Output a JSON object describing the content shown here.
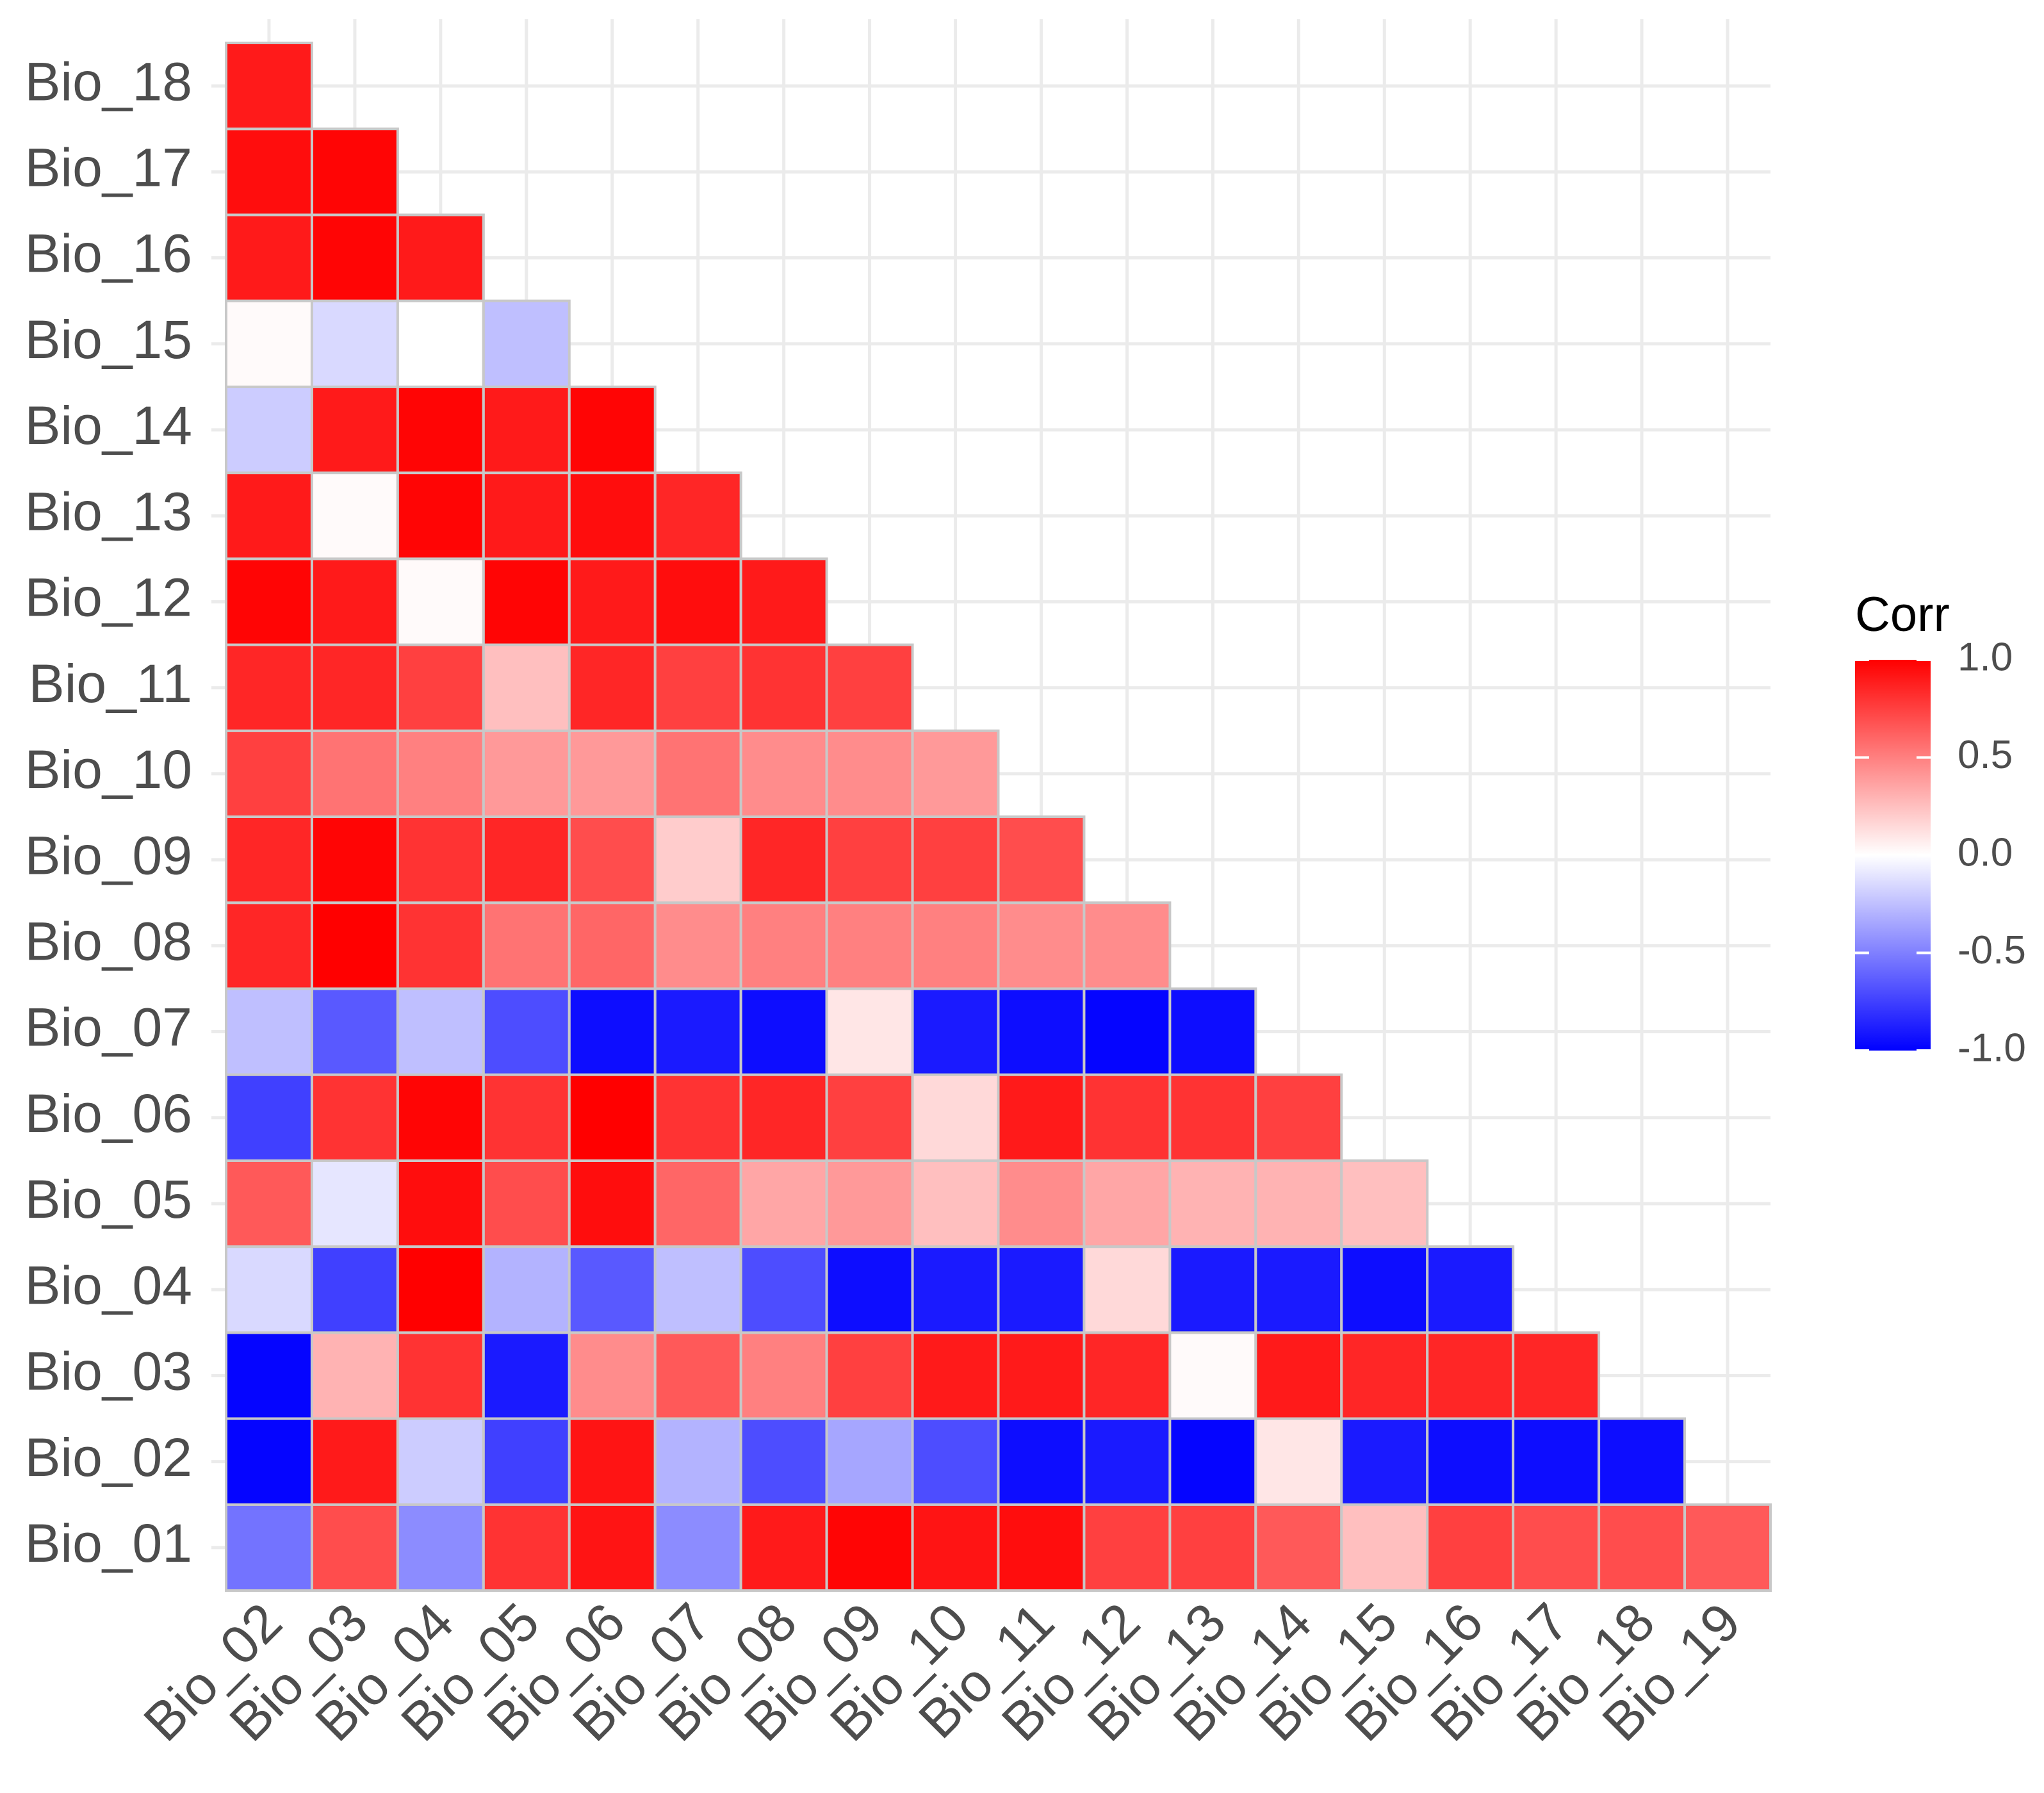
{
  "chart_data": {
    "type": "heatmap",
    "title": "",
    "xlabel": "",
    "ylabel": "",
    "x_categories": [
      "Bio_02",
      "Bio_03",
      "Bio_04",
      "Bio_05",
      "Bio_06",
      "Bio_07",
      "Bio_08",
      "Bio_09",
      "Bio_10",
      "Bio_11",
      "Bio_12",
      "Bio_13",
      "Bio_14",
      "Bio_15",
      "Bio_16",
      "Bio_17",
      "Bio_18",
      "Bio_19"
    ],
    "y_categories": [
      "Bio_01",
      "Bio_02",
      "Bio_03",
      "Bio_04",
      "Bio_05",
      "Bio_06",
      "Bio_07",
      "Bio_08",
      "Bio_09",
      "Bio_10",
      "Bio_11",
      "Bio_12",
      "Bio_13",
      "Bio_14",
      "Bio_15",
      "Bio_16",
      "Bio_17",
      "Bio_18"
    ],
    "values": [
      [
        -0.55,
        0.7,
        -0.45,
        0.8,
        0.92,
        -0.45,
        0.9,
        0.98,
        0.92,
        0.95,
        0.75,
        0.75,
        0.65,
        0.25,
        0.75,
        0.7,
        0.7,
        0.65
      ],
      [
        -0.98,
        0.9,
        -0.2,
        -0.75,
        0.92,
        -0.3,
        -0.7,
        -0.35,
        -0.7,
        -0.95,
        -0.9,
        -0.98,
        0.1,
        -0.9,
        -0.95,
        -0.95,
        -0.95,
        null
      ],
      [
        -0.98,
        0.3,
        0.8,
        -0.9,
        0.45,
        0.65,
        0.5,
        0.75,
        0.9,
        0.9,
        0.85,
        0.02,
        0.9,
        0.85,
        0.85,
        0.85,
        null,
        null
      ],
      [
        -0.15,
        -0.75,
        1.0,
        -0.3,
        -0.65,
        -0.25,
        -0.7,
        -0.95,
        -0.9,
        -0.9,
        0.15,
        -0.9,
        -0.9,
        -0.95,
        -0.9,
        null,
        null,
        null
      ],
      [
        0.65,
        -0.1,
        0.95,
        0.7,
        0.95,
        0.6,
        0.35,
        0.4,
        0.25,
        0.45,
        0.35,
        0.3,
        0.3,
        0.25,
        null,
        null,
        null,
        null
      ],
      [
        -0.75,
        0.8,
        0.98,
        0.8,
        1.0,
        0.8,
        0.85,
        0.75,
        0.15,
        0.9,
        0.8,
        0.8,
        0.75,
        null,
        null,
        null,
        null,
        null
      ],
      [
        -0.25,
        -0.65,
        -0.25,
        -0.7,
        -0.95,
        -0.9,
        -0.95,
        0.1,
        -0.9,
        -0.95,
        -0.98,
        -0.95,
        null,
        null,
        null,
        null,
        null,
        null
      ],
      [
        0.85,
        1.0,
        0.8,
        0.55,
        0.6,
        0.45,
        0.5,
        0.5,
        0.5,
        0.45,
        0.45,
        null,
        null,
        null,
        null,
        null,
        null,
        null
      ],
      [
        0.85,
        0.98,
        0.8,
        0.85,
        0.7,
        0.2,
        0.85,
        0.75,
        0.75,
        0.7,
        null,
        null,
        null,
        null,
        null,
        null,
        null,
        null
      ],
      [
        0.75,
        0.55,
        0.5,
        0.4,
        0.4,
        0.55,
        0.45,
        0.45,
        0.4,
        null,
        null,
        null,
        null,
        null,
        null,
        null,
        null,
        null
      ],
      [
        0.85,
        0.85,
        0.75,
        0.25,
        0.85,
        0.75,
        0.8,
        0.75,
        null,
        null,
        null,
        null,
        null,
        null,
        null,
        null,
        null,
        null
      ],
      [
        0.98,
        0.9,
        0.02,
        0.98,
        0.9,
        0.95,
        0.9,
        null,
        null,
        null,
        null,
        null,
        null,
        null,
        null,
        null,
        null,
        null
      ],
      [
        0.9,
        0.02,
        0.98,
        0.9,
        0.95,
        0.85,
        null,
        null,
        null,
        null,
        null,
        null,
        null,
        null,
        null,
        null,
        null,
        null
      ],
      [
        -0.2,
        0.9,
        0.98,
        0.9,
        0.98,
        null,
        null,
        null,
        null,
        null,
        null,
        null,
        null,
        null,
        null,
        null,
        null,
        null
      ],
      [
        0.02,
        -0.15,
        0.0,
        -0.25,
        null,
        null,
        null,
        null,
        null,
        null,
        null,
        null,
        null,
        null,
        null,
        null,
        null,
        null
      ],
      [
        0.9,
        0.98,
        0.9,
        null,
        null,
        null,
        null,
        null,
        null,
        null,
        null,
        null,
        null,
        null,
        null,
        null,
        null,
        null
      ],
      [
        0.95,
        0.98,
        null,
        null,
        null,
        null,
        null,
        null,
        null,
        null,
        null,
        null,
        null,
        null,
        null,
        null,
        null,
        null
      ],
      [
        0.9,
        null,
        null,
        null,
        null,
        null,
        null,
        null,
        null,
        null,
        null,
        null,
        null,
        null,
        null,
        null,
        null,
        null
      ]
    ],
    "legend": {
      "title": "Corr",
      "position": "right",
      "ticks": [
        {
          "value": 1.0,
          "label": "1.0"
        },
        {
          "value": 0.5,
          "label": "0.5"
        },
        {
          "value": 0.0,
          "label": "0.0"
        },
        {
          "value": -0.5,
          "label": "-0.5"
        },
        {
          "value": -1.0,
          "label": "-1.0"
        }
      ],
      "range": [
        -1.0,
        1.0
      ]
    },
    "colors": {
      "low": "#0000ff",
      "mid": "#ffffff",
      "high": "#ff0000"
    },
    "grid": true
  }
}
